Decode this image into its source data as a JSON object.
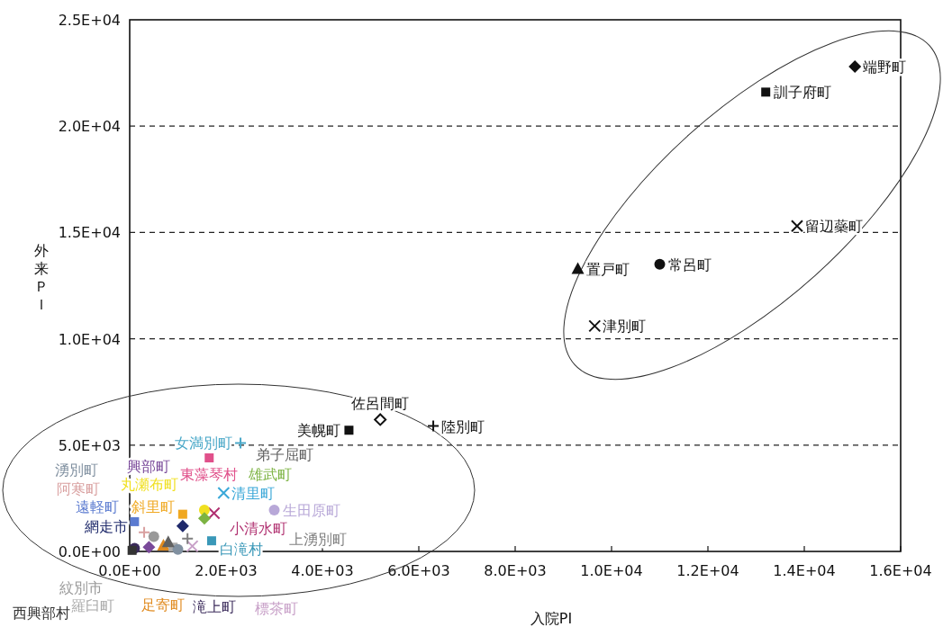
{
  "chart_data": {
    "type": "scatter",
    "xlabel": "入院PI",
    "ylabel": "外来ＰＩ",
    "grid": "y",
    "xlim": [
      0,
      16000
    ],
    "ylim": [
      0,
      25000
    ],
    "xticks": [
      {
        "value": 0,
        "label": "0.0E+00"
      },
      {
        "value": 2000,
        "label": "2.0E+03"
      },
      {
        "value": 4000,
        "label": "4.0E+03"
      },
      {
        "value": 6000,
        "label": "6.0E+03"
      },
      {
        "value": 8000,
        "label": "8.0E+03"
      },
      {
        "value": 10000,
        "label": "1.0E+04"
      },
      {
        "value": 12000,
        "label": "1.2E+04"
      },
      {
        "value": 14000,
        "label": "1.4E+04"
      },
      {
        "value": 16000,
        "label": "1.6E+04"
      }
    ],
    "yticks": [
      {
        "value": 0,
        "label": "0.0E+00"
      },
      {
        "value": 5000,
        "label": "5.0E+03"
      },
      {
        "value": 10000,
        "label": "1.0E+04"
      },
      {
        "value": 15000,
        "label": "1.5E+04"
      },
      {
        "value": 20000,
        "label": "2.0E+04"
      },
      {
        "value": 25000,
        "label": "2.5E+04"
      }
    ],
    "series": [
      {
        "name": "端野町",
        "color": "#111111",
        "marker": "diamond",
        "x": [
          15050
        ],
        "values": [
          22800
        ]
      },
      {
        "name": "訓子府町",
        "color": "#111111",
        "marker": "square",
        "x": [
          13200
        ],
        "values": [
          21600
        ]
      },
      {
        "name": "留辺蘂町",
        "color": "#111111",
        "marker": "cross",
        "x": [
          13850
        ],
        "values": [
          15300
        ]
      },
      {
        "name": "常呂町",
        "color": "#111111",
        "marker": "circle",
        "x": [
          11000
        ],
        "values": [
          13500
        ]
      },
      {
        "name": "置戸町",
        "color": "#111111",
        "marker": "triangle",
        "x": [
          9300
        ],
        "values": [
          13300
        ]
      },
      {
        "name": "津別町",
        "color": "#111111",
        "marker": "cross",
        "x": [
          9650
        ],
        "values": [
          10600
        ]
      },
      {
        "name": "佐呂間町",
        "color": "#111111",
        "marker": "diamond-open",
        "x": [
          5200
        ],
        "values": [
          6200
        ]
      },
      {
        "name": "陸別町",
        "color": "#111111",
        "marker": "plus",
        "x": [
          6300
        ],
        "values": [
          5900
        ]
      },
      {
        "name": "美幌町",
        "color": "#111111",
        "marker": "square",
        "x": [
          4550
        ],
        "values": [
          5700
        ]
      },
      {
        "name": "女満別町",
        "color": "#4aa8c8",
        "marker": "plus",
        "x": [
          2300
        ],
        "values": [
          5100
        ]
      },
      {
        "name": "東藻琴村",
        "color": "#e0508a",
        "marker": "square",
        "x": [
          1650
        ],
        "values": [
          4400
        ]
      },
      {
        "name": "清里町",
        "color": "#3aa8d8",
        "marker": "cross",
        "x": [
          1950
        ],
        "values": [
          2750
        ]
      },
      {
        "name": "生田原町",
        "color": "#b8a8d8",
        "marker": "circle",
        "x": [
          3000
        ],
        "values": [
          1950
        ]
      },
      {
        "name": "斜里町",
        "color": "#f0a820",
        "marker": "square",
        "x": [
          1100
        ],
        "values": [
          1750
        ]
      },
      {
        "name": "小清水町",
        "color": "#b03070",
        "marker": "cross",
        "x": [
          1750
        ],
        "values": [
          1800
        ]
      },
      {
        "name": "丸瀬布町",
        "color": "#f0e020",
        "marker": "circle",
        "x": [
          1550
        ],
        "values": [
          1950
        ]
      },
      {
        "name": "網走市",
        "color": "#1f2a6b",
        "marker": "diamond",
        "x": [
          1100
        ],
        "values": [
          1200
        ]
      },
      {
        "name": "白滝村",
        "color": "#3a98b8",
        "marker": "square",
        "x": [
          1700
        ],
        "values": [
          500
        ]
      },
      {
        "name": "雄武町",
        "color": "#7cb342",
        "marker": "diamond",
        "x": [
          1550
        ],
        "values": [
          1550
        ]
      },
      {
        "name": "遠軽町",
        "color": "#5b7bd0",
        "marker": "square",
        "x": [
          100
        ],
        "values": [
          1400
        ]
      },
      {
        "name": "阿寒町",
        "color": "#d9a0a0",
        "marker": "plus",
        "x": [
          300
        ],
        "values": [
          900
        ]
      },
      {
        "name": "紋別市",
        "color": "#999999",
        "marker": "circle",
        "x": [
          500
        ],
        "values": [
          700
        ]
      },
      {
        "name": "足寄町",
        "color": "#e08a1e",
        "marker": "triangle",
        "x": [
          700
        ],
        "values": [
          300
        ]
      },
      {
        "name": "滝上町",
        "color": "#3a2a5a",
        "marker": "circle",
        "x": [
          100
        ],
        "values": [
          150
        ]
      },
      {
        "name": "羅臼町",
        "color": "#aaaaaa",
        "marker": "square",
        "x": [
          900
        ],
        "values": [
          200
        ]
      },
      {
        "name": "標茶町",
        "color": "#c8a0c8",
        "marker": "cross",
        "x": [
          1300
        ],
        "values": [
          250
        ]
      },
      {
        "name": "湧別町",
        "color": "#8090a0",
        "marker": "circle",
        "x": [
          1000
        ],
        "values": [
          100
        ]
      },
      {
        "name": "西興部村",
        "color": "#333333",
        "marker": "square",
        "x": [
          50
        ],
        "values": [
          50
        ]
      },
      {
        "name": "弟子屈町",
        "color": "#606060",
        "marker": "triangle",
        "x": [
          800
        ],
        "values": [
          450
        ]
      },
      {
        "name": "興部町",
        "color": "#7a4a9a",
        "marker": "diamond",
        "x": [
          400
        ],
        "values": [
          200
        ]
      },
      {
        "name": "上湧別町",
        "color": "#808080",
        "marker": "plus",
        "x": [
          1200
        ],
        "values": [
          600
        ]
      }
    ]
  }
}
